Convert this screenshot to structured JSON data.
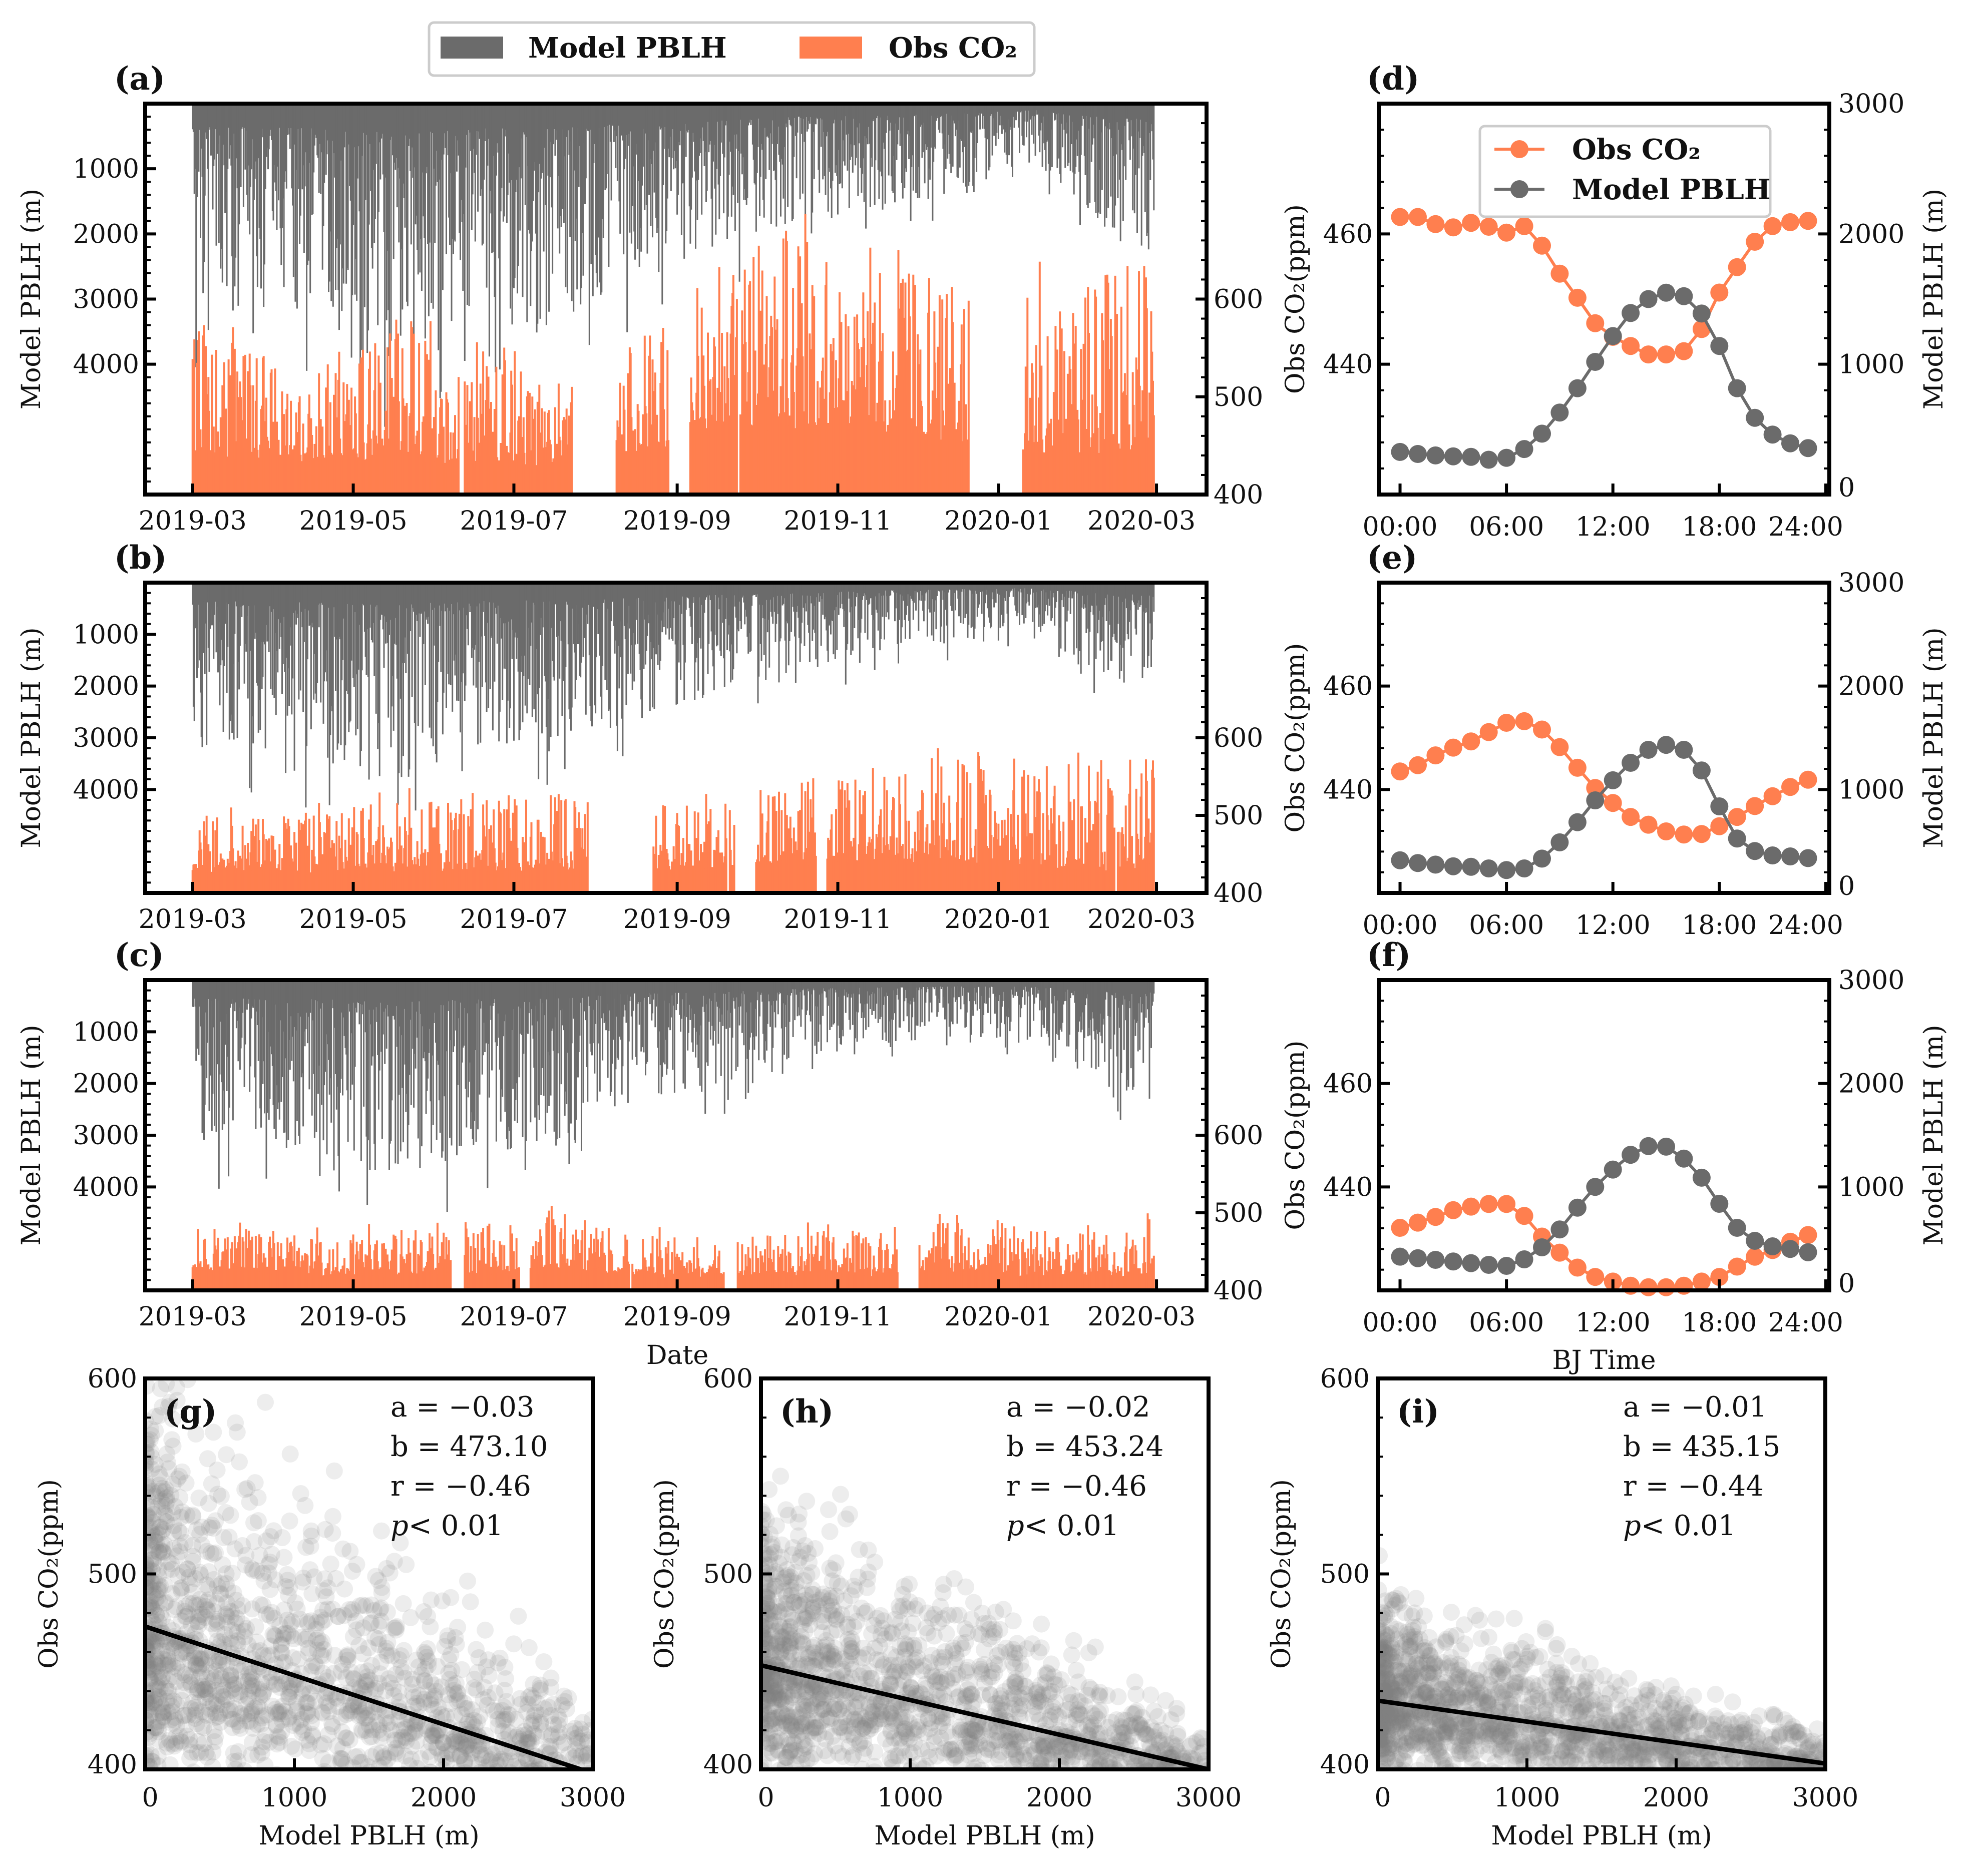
{
  "figure": {
    "top_legend": [
      {
        "label": "Model PBLH",
        "color": "#6b6b6b"
      },
      {
        "label": "Obs CO₂",
        "color": "#ff7f4f"
      }
    ],
    "xlabel_timeseries": "Date",
    "xlabel_diurnal": "BJ Time"
  },
  "chart_data": [
    {
      "panel": "(a)",
      "type": "bar",
      "x_units": "days since 2019-03-01",
      "xlim": [
        -18,
        385
      ],
      "xticks": [
        {
          "day": 0,
          "label": "2019-03"
        },
        {
          "day": 61,
          "label": "2019-05"
        },
        {
          "day": 122,
          "label": "2019-07"
        },
        {
          "day": 184,
          "label": "2019-09"
        },
        {
          "day": 245,
          "label": "2019-11"
        },
        {
          "day": 306,
          "label": "2020-01"
        },
        {
          "day": 366,
          "label": "2020-03"
        }
      ],
      "left_axis": {
        "label": "Model PBLH (m)",
        "range": [
          0,
          6000
        ],
        "inverted": true,
        "ticks": [
          1000,
          2000,
          3000,
          4000
        ]
      },
      "right_axis": {
        "range": [
          400,
          800
        ],
        "ticks": [
          400,
          500,
          600
        ]
      },
      "series": [
        {
          "name": "Model PBLH",
          "color": "#6b6b6b",
          "monthly_max": [
            3600,
            3800,
            4500,
            3800,
            3800,
            3000,
            2600,
            2000,
            1900,
            1500,
            1000,
            2300
          ]
        },
        {
          "name": "Obs CO₂",
          "color": "#ff7f4f",
          "monthly_max": [
            560,
            520,
            575,
            560,
            510,
            560,
            640,
            670,
            660,
            600,
            640,
            640
          ],
          "monthly_base": [
            440,
            435,
            440,
            430,
            430,
            440,
            470,
            470,
            470,
            450,
            440,
            440
          ],
          "gaps_days": [
            [
              101,
              103
            ],
            [
              144,
              161
            ],
            [
              181,
              189
            ],
            [
              207,
              208
            ],
            [
              295,
              315
            ]
          ]
        }
      ]
    },
    {
      "panel": "(b)",
      "type": "bar",
      "x_units": "days since 2019-03-01",
      "xlim": [
        -18,
        385
      ],
      "xticks": [
        {
          "day": 0,
          "label": "2019-03"
        },
        {
          "day": 61,
          "label": "2019-05"
        },
        {
          "day": 122,
          "label": "2019-07"
        },
        {
          "day": 184,
          "label": "2019-09"
        },
        {
          "day": 245,
          "label": "2019-11"
        },
        {
          "day": 306,
          "label": "2020-01"
        },
        {
          "day": 366,
          "label": "2020-03"
        }
      ],
      "left_axis": {
        "label": "Model PBLH (m)",
        "range": [
          0,
          6000
        ],
        "inverted": true,
        "ticks": [
          1000,
          2000,
          3000,
          4000
        ]
      },
      "right_axis": {
        "range": [
          400,
          800
        ],
        "ticks": [
          400,
          500,
          600
        ]
      },
      "series": [
        {
          "name": "Model PBLH",
          "color": "#6b6b6b",
          "monthly_max": [
            3600,
            3800,
            4300,
            3500,
            3400,
            3000,
            2400,
            2100,
            1500,
            1300,
            1000,
            2200
          ]
        },
        {
          "name": "Obs CO₂",
          "color": "#ff7f4f",
          "monthly_max": [
            500,
            500,
            520,
            525,
            525,
            510,
            515,
            540,
            560,
            575,
            560,
            575
          ],
          "monthly_base": [
            430,
            425,
            430,
            430,
            430,
            430,
            430,
            440,
            440,
            440,
            430,
            430
          ],
          "gaps_days": [
            [
              150,
              175
            ],
            [
              203,
              204
            ],
            [
              206,
              214
            ],
            [
              237,
              241
            ],
            [
              350,
              351
            ]
          ]
        }
      ]
    },
    {
      "panel": "(c)",
      "type": "bar",
      "x_units": "days since 2019-03-01",
      "xlim": [
        -18,
        385
      ],
      "xticks": [
        {
          "day": 0,
          "label": "2019-03"
        },
        {
          "day": 61,
          "label": "2019-05"
        },
        {
          "day": 122,
          "label": "2019-07"
        },
        {
          "day": 184,
          "label": "2019-09"
        },
        {
          "day": 245,
          "label": "2019-11"
        },
        {
          "day": 306,
          "label": "2020-01"
        },
        {
          "day": 366,
          "label": "2020-03"
        }
      ],
      "left_axis": {
        "label": "Model PBLH (m)",
        "range": [
          0,
          6000
        ],
        "inverted": true,
        "ticks": [
          1000,
          2000,
          3000,
          4000
        ]
      },
      "right_axis": {
        "range": [
          400,
          800
        ],
        "ticks": [
          400,
          500,
          600
        ]
      },
      "series": [
        {
          "name": "Model PBLH",
          "color": "#6b6b6b",
          "monthly_max": [
            3600,
            3600,
            4300,
            3700,
            3600,
            2500,
            2400,
            1700,
            1400,
            1200,
            1300,
            2400
          ]
        },
        {
          "name": "Obs CO₂",
          "color": "#ff7f4f",
          "monthly_max": [
            480,
            470,
            475,
            480,
            505,
            470,
            475,
            475,
            485,
            490,
            480,
            485
          ],
          "monthly_base": [
            425,
            420,
            420,
            420,
            425,
            420,
            420,
            420,
            420,
            425,
            420,
            420
          ],
          "gaps_days": [
            [
              98,
              103
            ],
            [
              124,
              128
            ],
            [
              166,
              167
            ],
            [
              202,
              207
            ],
            [
              268,
              276
            ]
          ]
        }
      ]
    },
    {
      "panel": "(d)",
      "type": "line",
      "x": [
        0,
        1,
        2,
        3,
        4,
        5,
        6,
        7,
        8,
        9,
        10,
        11,
        12,
        13,
        14,
        15,
        16,
        17,
        18,
        19,
        20,
        21,
        22,
        23
      ],
      "xlim": [
        -1.2,
        24.2
      ],
      "xticks": [
        {
          "hour": 0,
          "label": "00:00"
        },
        {
          "hour": 6,
          "label": "06:00"
        },
        {
          "hour": 12,
          "label": "12:00"
        },
        {
          "hour": 18,
          "label": "18:00"
        },
        {
          "hour": 24,
          "label": "24:00"
        }
      ],
      "left_axis": {
        "label": "Obs CO₂(ppm)",
        "range": [
          420,
          480
        ],
        "ticks": [
          440,
          460
        ]
      },
      "right_axis": {
        "label": "Model PBLH (m)",
        "range": [
          0,
          3000
        ],
        "ticks": [
          0,
          1000,
          2000,
          3000
        ]
      },
      "legend": [
        "Obs CO₂",
        "Model PBLH"
      ],
      "series": [
        {
          "name": "Obs CO₂",
          "axis": "left",
          "color": "#ff7f4f",
          "values": [
            462.6,
            462.6,
            461.5,
            461.0,
            461.7,
            461.1,
            460.2,
            461.2,
            458.2,
            453.9,
            450.2,
            446.3,
            444.2,
            442.8,
            441.5,
            441.5,
            442.0,
            445.4,
            451.0,
            454.9,
            458.8,
            461.2,
            461.8,
            462.0
          ]
        },
        {
          "name": "Model PBLH",
          "axis": "right",
          "color": "#6b6b6b",
          "values": [
            327,
            311,
            300,
            293,
            289,
            267,
            282,
            349,
            467,
            629,
            816,
            1018,
            1216,
            1393,
            1500,
            1549,
            1522,
            1389,
            1140,
            816,
            589,
            460,
            393,
            356
          ]
        }
      ]
    },
    {
      "panel": "(e)",
      "type": "line",
      "x": [
        0,
        1,
        2,
        3,
        4,
        5,
        6,
        7,
        8,
        9,
        10,
        11,
        12,
        13,
        14,
        15,
        16,
        17,
        18,
        19,
        20,
        21,
        22,
        23
      ],
      "xlim": [
        -1.2,
        24.2
      ],
      "xticks": [
        {
          "hour": 0,
          "label": "00:00"
        },
        {
          "hour": 6,
          "label": "06:00"
        },
        {
          "hour": 12,
          "label": "12:00"
        },
        {
          "hour": 18,
          "label": "18:00"
        },
        {
          "hour": 24,
          "label": "24:00"
        }
      ],
      "left_axis": {
        "label": "Obs CO₂(ppm)",
        "range": [
          420,
          480
        ],
        "ticks": [
          440,
          460
        ]
      },
      "right_axis": {
        "label": "Model PBLH (m)",
        "range": [
          0,
          3000
        ],
        "ticks": [
          0,
          1000,
          2000,
          3000
        ]
      },
      "series": [
        {
          "name": "Obs CO₂",
          "axis": "left",
          "color": "#ff7f4f",
          "values": [
            443.5,
            444.7,
            446.6,
            448.1,
            449.3,
            451.1,
            452.9,
            453.2,
            451.6,
            448.2,
            444.2,
            440.3,
            437.4,
            434.7,
            433.2,
            431.9,
            431.3,
            431.4,
            432.9,
            434.7,
            436.8,
            438.7,
            440.5,
            441.9
          ]
        },
        {
          "name": "Model PBLH",
          "axis": "right",
          "color": "#6b6b6b",
          "values": [
            316,
            289,
            274,
            258,
            253,
            237,
            221,
            237,
            332,
            489,
            684,
            895,
            1089,
            1258,
            1384,
            1432,
            1384,
            1184,
            837,
            526,
            405,
            363,
            353,
            337
          ]
        }
      ]
    },
    {
      "panel": "(f)",
      "type": "line",
      "x": [
        0,
        1,
        2,
        3,
        4,
        5,
        6,
        7,
        8,
        9,
        10,
        11,
        12,
        13,
        14,
        15,
        16,
        17,
        18,
        19,
        20,
        21,
        22,
        23
      ],
      "xlim": [
        -1.2,
        24.2
      ],
      "xticks": [
        {
          "hour": 0,
          "label": "00:00"
        },
        {
          "hour": 6,
          "label": "06:00"
        },
        {
          "hour": 12,
          "label": "12:00"
        },
        {
          "hour": 18,
          "label": "18:00"
        },
        {
          "hour": 24,
          "label": "24:00"
        }
      ],
      "left_axis": {
        "label": "Obs CO₂(ppm)",
        "range": [
          420,
          480
        ],
        "ticks": [
          440,
          460
        ]
      },
      "right_axis": {
        "label": "Model PBLH (m)",
        "range": [
          0,
          3000
        ],
        "ticks": [
          0,
          1000,
          2000,
          3000
        ]
      },
      "series": [
        {
          "name": "Obs CO₂",
          "axis": "left",
          "color": "#ff7f4f",
          "values": [
            432.1,
            433.1,
            434.2,
            435.5,
            436.2,
            436.7,
            436.7,
            434.4,
            430.4,
            427.3,
            424.4,
            422.6,
            421.7,
            420.9,
            420.6,
            420.6,
            420.9,
            421.7,
            422.6,
            424.6,
            426.5,
            427.8,
            429.4,
            430.7
          ]
        },
        {
          "name": "Model PBLH",
          "axis": "right",
          "color": "#6b6b6b",
          "values": [
            326,
            311,
            295,
            279,
            263,
            247,
            237,
            300,
            416,
            589,
            800,
            1000,
            1168,
            1311,
            1395,
            1389,
            1274,
            1089,
            837,
            605,
            479,
            426,
            400,
            368
          ]
        }
      ]
    },
    {
      "panel": "(g)",
      "type": "scatter",
      "xlabel": "Model PBLH (m)",
      "ylabel": "Obs CO₂(ppm)",
      "xlim": [
        0,
        3000
      ],
      "ylim": [
        400,
        600
      ],
      "xticks": [
        0,
        1000,
        2000,
        3000
      ],
      "yticks": [
        400,
        500,
        600
      ],
      "stats": {
        "a": "a = −0.03",
        "b": "b = 473.10",
        "r": "r = −0.46",
        "p_symbol": "p",
        "p_value": " < 0.01"
      },
      "fit_line": {
        "x": [
          0,
          3000
        ],
        "y": [
          473.1,
          398.0
        ]
      },
      "points_model": {
        "slope": -0.025,
        "intercept": 473.1,
        "spread_ppm": 34,
        "count": 1600,
        "color": "#808080",
        "alpha": 0.14
      }
    },
    {
      "panel": "(h)",
      "type": "scatter",
      "xlabel": "Model PBLH (m)",
      "ylabel": "Obs CO₂(ppm)",
      "xlim": [
        0,
        3000
      ],
      "ylim": [
        400,
        600
      ],
      "xticks": [
        0,
        1000,
        2000,
        3000
      ],
      "yticks": [
        400,
        500,
        600
      ],
      "stats": {
        "a": "a = −0.02",
        "b": "b = 453.24",
        "r": "r = −0.46",
        "p_symbol": "p",
        "p_value": " < 0.01"
      },
      "fit_line": {
        "x": [
          0,
          3000
        ],
        "y": [
          453.24,
          400.0
        ]
      },
      "points_model": {
        "slope": -0.0177,
        "intercept": 453.24,
        "spread_ppm": 24,
        "count": 1600,
        "color": "#808080",
        "alpha": 0.14
      }
    },
    {
      "panel": "(i)",
      "type": "scatter",
      "xlabel": "Model PBLH (m)",
      "ylabel": "Obs CO₂(ppm)",
      "xlim": [
        0,
        3000
      ],
      "ylim": [
        400,
        600
      ],
      "xticks": [
        0,
        1000,
        2000,
        3000
      ],
      "yticks": [
        400,
        500,
        600
      ],
      "stats": {
        "a": "a = −0.01",
        "b": "b = 435.15",
        "r": "r = −0.44",
        "p_symbol": "p",
        "p_value": " < 0.01"
      },
      "fit_line": {
        "x": [
          0,
          3000
        ],
        "y": [
          435.15,
          403.0
        ]
      },
      "points_model": {
        "slope": -0.0107,
        "intercept": 435.15,
        "spread_ppm": 15,
        "count": 1600,
        "color": "#808080",
        "alpha": 0.14
      }
    }
  ]
}
